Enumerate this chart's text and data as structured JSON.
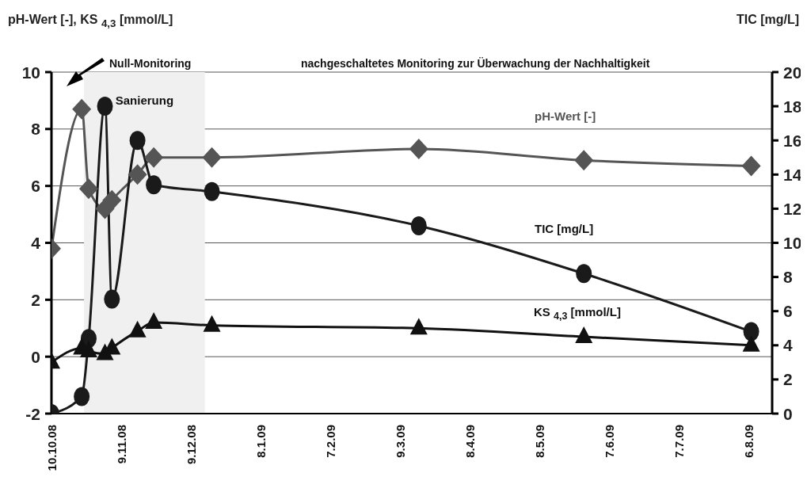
{
  "chart_data": {
    "type": "line",
    "ylabel": "pH-Wert [-], KS $_{4,3}$ [mmol/L]",
    "y2label": "TIC [mg/L]",
    "x": [
      "2008-10-10",
      "2008-10-23",
      "2008-10-26",
      "2008-11-02",
      "2008-11-05",
      "2008-11-16",
      "2008-11-23",
      "2008-12-18",
      "2009-03-17",
      "2009-05-27",
      "2009-08-07"
    ],
    "series": [
      {
        "name": "pH-Wert [-]",
        "color": "#555555",
        "marker": "diamond",
        "values": [
          3.8,
          8.7,
          5.9,
          5.2,
          5.5,
          6.4,
          7.0,
          7.0,
          7.3,
          6.9,
          6.7
        ]
      },
      {
        "name": "TIC [mg/L]",
        "color": "#1a1a1a",
        "marker": "circle",
        "axis": "y2",
        "values": [
          0,
          1.0,
          4.4,
          18.0,
          6.7,
          16.0,
          13.4,
          13.0,
          11.0,
          8.2,
          4.8
        ]
      },
      {
        "name": "KS $_{4,3}$ [mmol/L]",
        "color": "#111111",
        "marker": "triangle",
        "values": [
          -0.2,
          0.3,
          0.2,
          0.1,
          0.3,
          0.9,
          1.2,
          1.1,
          1.0,
          0.7,
          0.4
        ]
      }
    ],
    "xlim": [
      "2008-10-10",
      "2009-08-16"
    ],
    "xticks": [
      {
        "value": "2008-10-10",
        "label": "10.10.08"
      },
      {
        "value": "2008-11-09",
        "label": "9.11.08"
      },
      {
        "value": "2008-12-09",
        "label": "9.12.08"
      },
      {
        "value": "2009-01-08",
        "label": "8.1.09"
      },
      {
        "value": "2009-02-07",
        "label": "7.2.09"
      },
      {
        "value": "2009-03-09",
        "label": "9.3.09"
      },
      {
        "value": "2009-04-08",
        "label": "8.4.09"
      },
      {
        "value": "2009-05-08",
        "label": "8.5.09"
      },
      {
        "value": "2009-06-07",
        "label": "7.6.09"
      },
      {
        "value": "2009-07-07",
        "label": "7.7.09"
      },
      {
        "value": "2009-08-06",
        "label": "6.8.09"
      }
    ],
    "ylim": [
      -2,
      10
    ],
    "yticks": [
      -2,
      0,
      2,
      4,
      6,
      8,
      10
    ],
    "y2lim": [
      0,
      20
    ],
    "y2ticks": [
      0,
      2,
      4,
      6,
      8,
      10,
      12,
      14,
      16,
      18,
      20
    ],
    "grid": "y",
    "bands": [
      {
        "axis": "x",
        "from": "2008-10-24",
        "to": "2008-12-15",
        "label": "Sanierung",
        "color": "#f0f0f0"
      }
    ],
    "annotations": [
      "Null-Monitoring",
      "nachgeschaltetes Monitoring zur Überwachung der Nachhaltigkeit"
    ]
  }
}
